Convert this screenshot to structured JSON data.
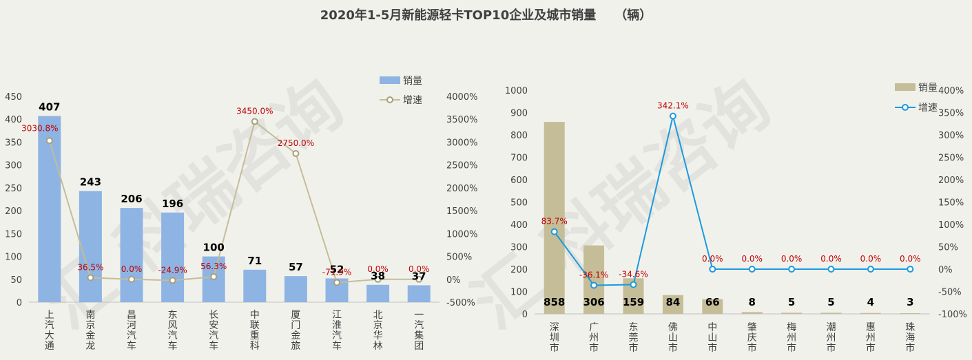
{
  "title": "2020年1-5月新能源轻卡TOP10企业及城市销量　　（辆）",
  "watermark": "汇 科瑞咨询",
  "chart_data": [
    {
      "type": "bar",
      "categories": [
        "上汽大通",
        "南京金龙",
        "昌河汽车",
        "东风汽车",
        "长安汽车",
        "中联重科",
        "厦门金旅",
        "江淮汽车",
        "北京华林",
        "一汽集团"
      ],
      "series": [
        {
          "name": "销量",
          "type": "bar",
          "axis": "left",
          "color": "#8eb4e3",
          "values": [
            407,
            243,
            206,
            196,
            100,
            71,
            57,
            52,
            38,
            37
          ],
          "labels": [
            "407",
            "243",
            "206",
            "196",
            "100",
            "71",
            "57",
            "52",
            "38",
            "37"
          ]
        },
        {
          "name": "增速",
          "type": "line",
          "axis": "right",
          "color": "#c4bd97",
          "values": [
            3030.8,
            36.5,
            0.0,
            -24.9,
            56.3,
            3450.0,
            2750.0,
            -71.9,
            0.0,
            0.0
          ],
          "labels": [
            "3030.8%",
            "36.5%",
            "0.0%",
            "-24.9%",
            "56.3%",
            "3450.0%",
            "2750.0%",
            "-71.9%",
            "0.0%",
            "0.0%"
          ]
        }
      ],
      "y_left": {
        "min": 0,
        "max": 450,
        "ticks": [
          "0",
          "50",
          "100",
          "150",
          "200",
          "250",
          "300",
          "350",
          "400",
          "450"
        ]
      },
      "y_right": {
        "min": -500,
        "max": 4000,
        "ticks": [
          "-500%",
          "0%",
          "500%",
          "1000%",
          "1500%",
          "2000%",
          "2500%",
          "3000%",
          "3500%",
          "4000%"
        ]
      },
      "legend": "top-right",
      "grid": false
    },
    {
      "type": "bar",
      "categories": [
        "深圳市",
        "广州市",
        "东莞市",
        "佛山市",
        "中山市",
        "肇庆市",
        "梅州市",
        "潮州市",
        "惠州市",
        "珠海市"
      ],
      "series": [
        {
          "name": "销量",
          "type": "bar",
          "axis": "left",
          "color": "#c4bd97",
          "values": [
            858,
            306,
            159,
            84,
            66,
            8,
            5,
            5,
            4,
            3
          ],
          "labels": [
            "858",
            "306",
            "159",
            "84",
            "66",
            "8",
            "5",
            "5",
            "4",
            "3"
          ]
        },
        {
          "name": "增速",
          "type": "line",
          "axis": "right",
          "color": "#1a9ae0",
          "values": [
            83.7,
            -36.1,
            -34.6,
            342.1,
            0.0,
            0.0,
            0.0,
            0.0,
            0.0,
            0.0
          ],
          "labels": [
            "83.7%",
            "-36.1%",
            "-34.6%",
            "342.1%",
            "0.0%",
            "0.0%",
            "0.0%",
            "0.0%",
            "0.0%",
            "0.0%"
          ]
        }
      ],
      "y_left": {
        "min": 0,
        "max": 1000,
        "ticks": [
          "0",
          "100",
          "200",
          "300",
          "400",
          "500",
          "600",
          "700",
          "800",
          "900",
          "1000"
        ]
      },
      "y_right": {
        "min": -100,
        "max": 400,
        "ticks": [
          "-100%",
          "-50%",
          "0%",
          "50%",
          "100%",
          "150%",
          "200%",
          "250%",
          "300%",
          "350%",
          "400%"
        ]
      },
      "legend": "top-right",
      "grid": false
    }
  ]
}
